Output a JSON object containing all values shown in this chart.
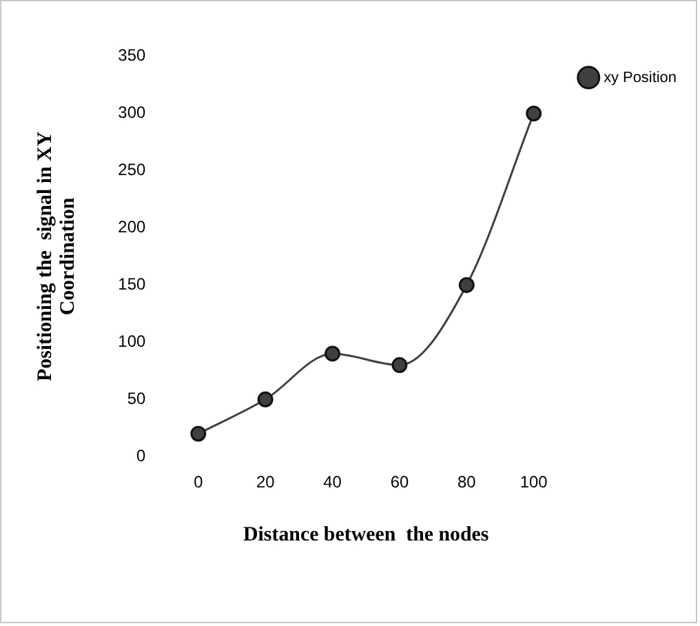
{
  "chart_data": {
    "type": "line",
    "xlabel": "Distance between  the nodes",
    "ylabel": "Positioning the  signal in XY\nCoordination",
    "categories": [
      "0",
      "20",
      "40",
      "60",
      "80",
      "100"
    ],
    "series": [
      {
        "name": "xy Position",
        "color": "#404040",
        "values": [
          20,
          50,
          90,
          80,
          150,
          300
        ]
      }
    ],
    "ylim": [
      0,
      350
    ],
    "yticks": [
      0,
      50,
      100,
      150,
      200,
      250,
      300,
      350
    ],
    "grid": false,
    "legend": "top right",
    "marker": "circle",
    "line_style": "solid"
  }
}
